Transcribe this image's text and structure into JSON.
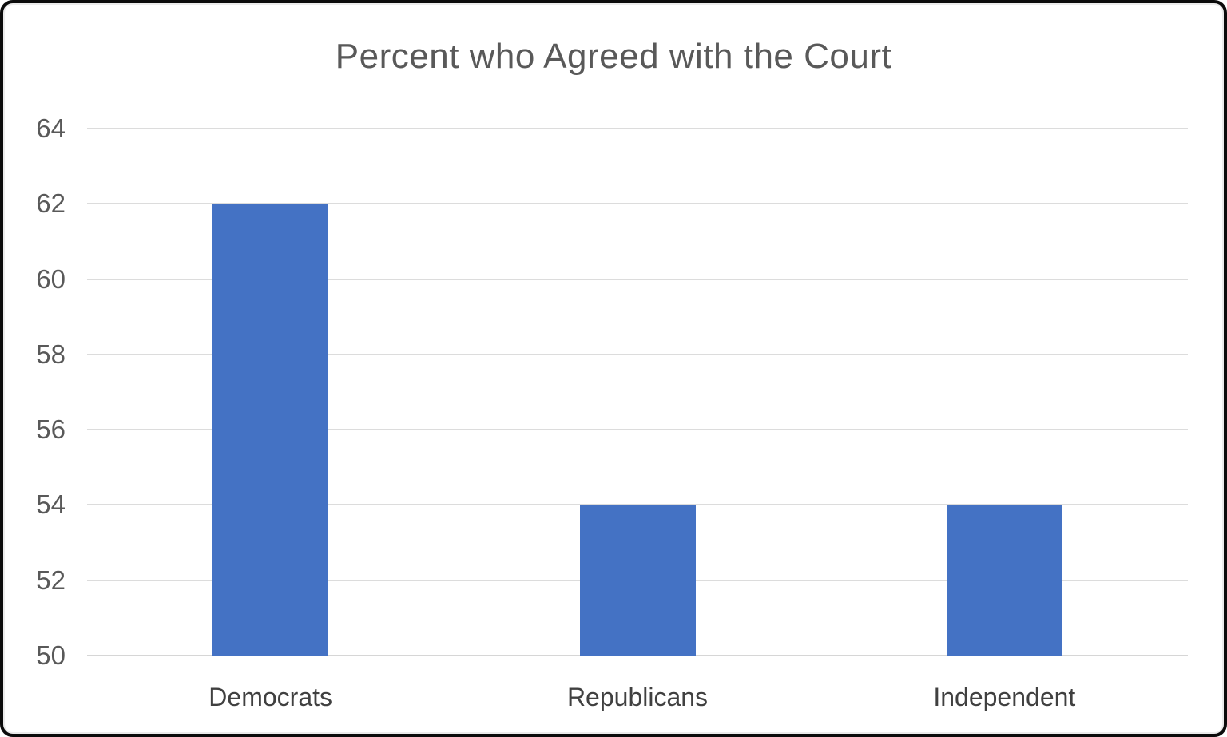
{
  "chart_data": {
    "type": "bar",
    "title": "Percent who Agreed with the Court",
    "categories": [
      "Democrats",
      "Republicans",
      "Independent"
    ],
    "values": [
      62,
      54,
      54
    ],
    "xlabel": "",
    "ylabel": "",
    "ylim": [
      50,
      64
    ],
    "ytick_step": 2,
    "yticks": [
      50,
      52,
      54,
      56,
      58,
      60,
      62,
      64
    ],
    "grid": "horizontal",
    "legend": "none",
    "colors": {
      "bar": "#4472C4",
      "gridline": "#dcdcdc",
      "title": "#595959",
      "y_tick_label": "#595959",
      "category_label": "#404040",
      "frame_border": "#0b0b0b",
      "background": "#ffffff"
    }
  }
}
